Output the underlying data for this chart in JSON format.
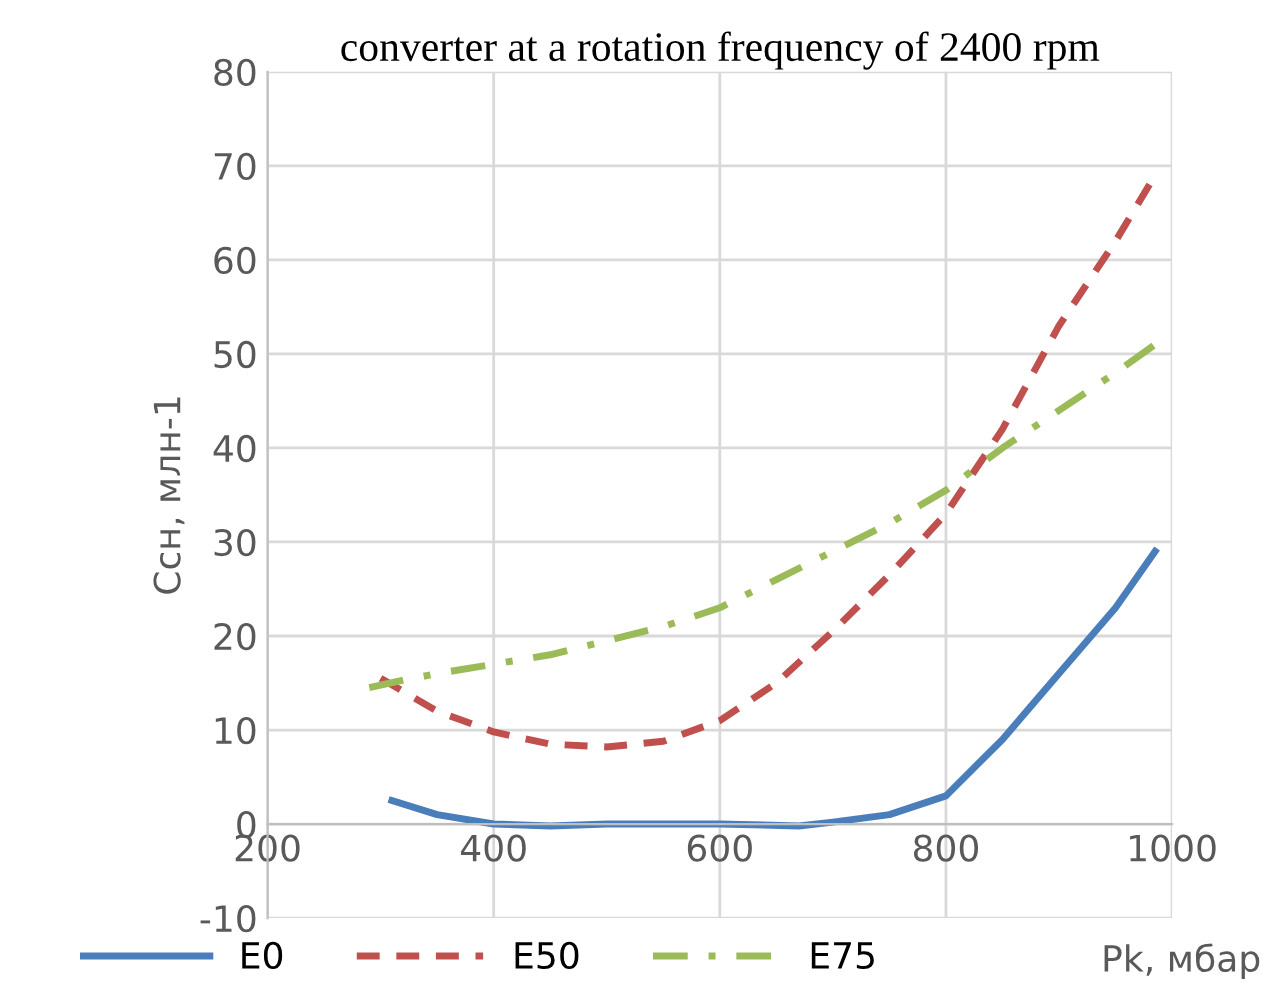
{
  "chart_data": {
    "type": "line",
    "title": "converter at a rotation frequency of 2400 rpm",
    "xlabel": "Pk, мбар",
    "ylabel": "Ccн, млн-1",
    "xlim": [
      200,
      1000
    ],
    "xticks": [
      200,
      400,
      600,
      800,
      1000
    ],
    "ylim": [
      -10,
      80
    ],
    "yticks": [
      -10,
      0,
      10,
      20,
      30,
      40,
      50,
      60,
      70,
      80
    ],
    "grid": true,
    "legend": "bottom",
    "series": [
      {
        "name": "E0",
        "color": "#4a7ebb",
        "line_style": "solid",
        "x": [
          310,
          350,
          400,
          450,
          500,
          600,
          670,
          700,
          750,
          800,
          850,
          900,
          950,
          985
        ],
        "values": [
          2.5,
          1,
          0,
          -0.2,
          0,
          0,
          -0.2,
          0.2,
          1,
          3,
          9,
          16,
          23,
          29
        ]
      },
      {
        "name": "E50",
        "color": "#c0504d",
        "line_style": "dashed",
        "x": [
          300,
          350,
          400,
          450,
          500,
          550,
          600,
          650,
          700,
          750,
          800,
          850,
          900,
          950,
          985
        ],
        "values": [
          15.5,
          12,
          9.8,
          8.5,
          8.2,
          8.8,
          11,
          15,
          20.5,
          26.5,
          33,
          42,
          53,
          62,
          69
        ]
      },
      {
        "name": "E75",
        "color": "#9bbb59",
        "line_style": "dashdot",
        "x": [
          290,
          320,
          350,
          400,
          450,
          500,
          550,
          600,
          650,
          700,
          750,
          800,
          850,
          900,
          950,
          985
        ],
        "values": [
          14.5,
          15.3,
          16,
          17,
          18,
          19.5,
          21,
          23,
          26,
          29,
          32,
          35.5,
          40,
          44,
          48,
          51
        ]
      }
    ]
  }
}
